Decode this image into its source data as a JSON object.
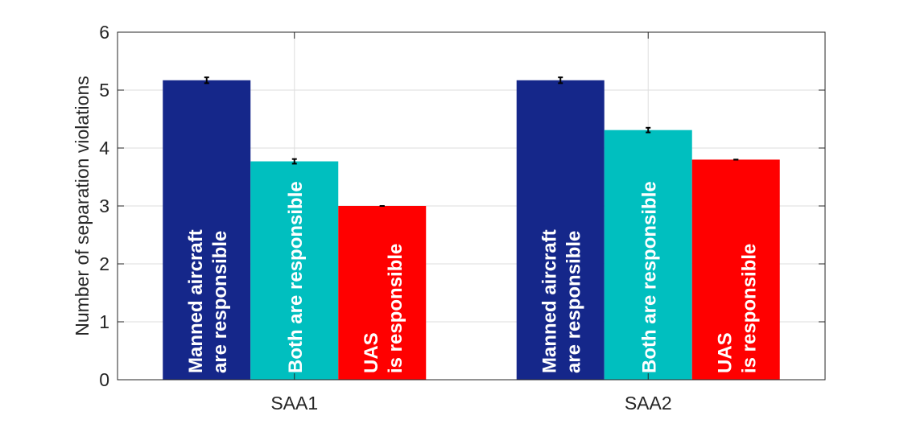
{
  "chart_data": {
    "type": "bar",
    "categories": [
      "SAA1",
      "SAA2"
    ],
    "series": [
      {
        "name": "Manned aircraft are responsible",
        "label_lines": [
          "Manned aircraft",
          "are responsible"
        ],
        "color": "#15278a",
        "values": [
          5.17,
          5.17
        ],
        "errors": [
          0.05,
          0.05
        ]
      },
      {
        "name": "Both are responsible",
        "label_lines": [
          "Both are responsible"
        ],
        "color": "#00bfbf",
        "values": [
          3.77,
          4.31
        ],
        "errors": [
          0.04,
          0.04
        ]
      },
      {
        "name": "UAS is responsible",
        "label_lines": [
          "UAS",
          "is responsible"
        ],
        "color": "#ff0000",
        "values": [
          3.0,
          3.8
        ],
        "errors": [
          0.0,
          0.0
        ]
      }
    ],
    "ylabel": "Number of separation violations",
    "xlabel": "",
    "ylim": [
      0,
      6
    ],
    "yticks": [
      "0",
      "1",
      "2",
      "3",
      "4",
      "5",
      "6"
    ],
    "grid": true,
    "legend": "none"
  }
}
